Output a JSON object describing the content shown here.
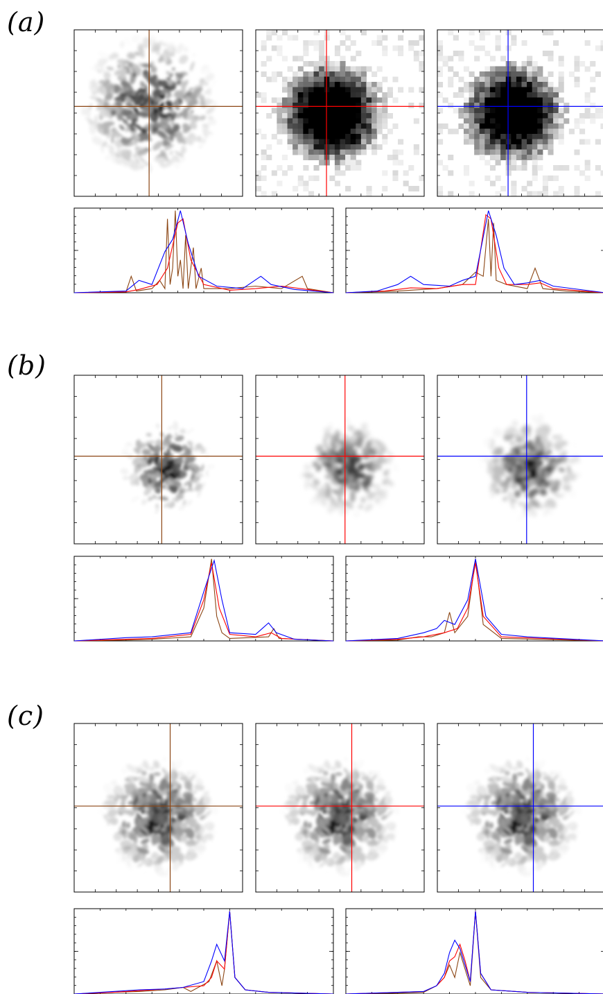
{
  "panels": [
    {
      "label": "(a)",
      "image_style": "smooth",
      "lines": {
        "left": "#8B4513",
        "middle": "#ff0000",
        "right": "#0000ff"
      }
    },
    {
      "label": "(b)",
      "image_style": "smooth",
      "lines": {
        "left": "#8B4513",
        "middle": "#ff0000",
        "right": "#0000ff"
      }
    },
    {
      "label": "(c)",
      "image_style": "smooth",
      "lines": {
        "left": "#8B4513",
        "middle": "#ff0000",
        "right": "#0000ff"
      }
    }
  ],
  "colors": {
    "brown": "#8B4513",
    "red": "#ff0000",
    "blue": "#0000ff"
  },
  "profiles": {
    "a": {
      "left": {
        "brown": [
          [
            0,
            0
          ],
          [
            0.2,
            0.01
          ],
          [
            0.22,
            0.2
          ],
          [
            0.24,
            0.02
          ],
          [
            0.3,
            0.05
          ],
          [
            0.33,
            0.15
          ],
          [
            0.35,
            0.05
          ],
          [
            0.36,
            0.9
          ],
          [
            0.37,
            0.1
          ],
          [
            0.38,
            0.3
          ],
          [
            0.39,
            1.0
          ],
          [
            0.4,
            0.2
          ],
          [
            0.41,
            0.4
          ],
          [
            0.42,
            0.05
          ],
          [
            0.43,
            0.7
          ],
          [
            0.44,
            0.05
          ],
          [
            0.46,
            0.55
          ],
          [
            0.47,
            0.05
          ],
          [
            0.49,
            0.3
          ],
          [
            0.5,
            0.05
          ],
          [
            0.6,
            0.05
          ],
          [
            0.7,
            0.08
          ],
          [
            0.8,
            0.05
          ],
          [
            0.88,
            0.2
          ],
          [
            0.9,
            0.05
          ],
          [
            1,
            0
          ]
        ],
        "red": [
          [
            0,
            0
          ],
          [
            0.2,
            0.01
          ],
          [
            0.25,
            0.04
          ],
          [
            0.32,
            0.1
          ],
          [
            0.36,
            0.3
          ],
          [
            0.4,
            0.85
          ],
          [
            0.42,
            0.9
          ],
          [
            0.45,
            0.4
          ],
          [
            0.5,
            0.1
          ],
          [
            0.6,
            0.03
          ],
          [
            0.7,
            0.05
          ],
          [
            0.8,
            0.08
          ],
          [
            0.9,
            0.04
          ],
          [
            1,
            0
          ]
        ],
        "blue": [
          [
            0,
            0
          ],
          [
            0.2,
            0.02
          ],
          [
            0.25,
            0.15
          ],
          [
            0.3,
            0.1
          ],
          [
            0.35,
            0.5
          ],
          [
            0.38,
            0.65
          ],
          [
            0.41,
            1.0
          ],
          [
            0.44,
            0.6
          ],
          [
            0.48,
            0.2
          ],
          [
            0.55,
            0.08
          ],
          [
            0.65,
            0.05
          ],
          [
            0.72,
            0.2
          ],
          [
            0.76,
            0.1
          ],
          [
            0.85,
            0.04
          ],
          [
            1,
            0
          ]
        ]
      },
      "right": {
        "brown": [
          [
            0,
            0
          ],
          [
            0.2,
            0.02
          ],
          [
            0.35,
            0.05
          ],
          [
            0.45,
            0.1
          ],
          [
            0.5,
            0.25
          ],
          [
            0.53,
            0.2
          ],
          [
            0.55,
            0.9
          ],
          [
            0.56,
            0.2
          ],
          [
            0.57,
            0.85
          ],
          [
            0.58,
            0.15
          ],
          [
            0.62,
            0.1
          ],
          [
            0.7,
            0.05
          ],
          [
            0.73,
            0.3
          ],
          [
            0.76,
            0.05
          ],
          [
            0.85,
            0.02
          ],
          [
            1,
            0
          ]
        ],
        "red": [
          [
            0,
            0
          ],
          [
            0.15,
            0.02
          ],
          [
            0.25,
            0.06
          ],
          [
            0.35,
            0.05
          ],
          [
            0.45,
            0.1
          ],
          [
            0.5,
            0.1
          ],
          [
            0.54,
            0.95
          ],
          [
            0.56,
            0.9
          ],
          [
            0.59,
            0.3
          ],
          [
            0.62,
            0.1
          ],
          [
            0.7,
            0.1
          ],
          [
            0.75,
            0.12
          ],
          [
            0.8,
            0.05
          ],
          [
            1,
            0
          ]
        ],
        "blue": [
          [
            0,
            0
          ],
          [
            0.12,
            0.02
          ],
          [
            0.2,
            0.1
          ],
          [
            0.25,
            0.2
          ],
          [
            0.3,
            0.1
          ],
          [
            0.4,
            0.08
          ],
          [
            0.45,
            0.15
          ],
          [
            0.5,
            0.2
          ],
          [
            0.55,
            1.0
          ],
          [
            0.58,
            0.7
          ],
          [
            0.61,
            0.3
          ],
          [
            0.65,
            0.1
          ],
          [
            0.7,
            0.12
          ],
          [
            0.75,
            0.15
          ],
          [
            0.8,
            0.08
          ],
          [
            1,
            0
          ]
        ]
      }
    },
    "b": {
      "left": {
        "brown": [
          [
            0,
            0
          ],
          [
            0.2,
            0.01
          ],
          [
            0.3,
            0.02
          ],
          [
            0.45,
            0.05
          ],
          [
            0.5,
            0.4
          ],
          [
            0.53,
            1.0
          ],
          [
            0.55,
            0.3
          ],
          [
            0.57,
            0.1
          ],
          [
            0.6,
            0.03
          ],
          [
            0.75,
            0.05
          ],
          [
            0.77,
            0.15
          ],
          [
            0.79,
            0.03
          ],
          [
            1,
            0
          ]
        ],
        "red": [
          [
            0,
            0
          ],
          [
            0.2,
            0.02
          ],
          [
            0.3,
            0.03
          ],
          [
            0.45,
            0.08
          ],
          [
            0.5,
            0.5
          ],
          [
            0.53,
            0.95
          ],
          [
            0.56,
            0.4
          ],
          [
            0.6,
            0.08
          ],
          [
            0.7,
            0.05
          ],
          [
            0.76,
            0.1
          ],
          [
            0.8,
            0.03
          ],
          [
            1,
            0
          ]
        ],
        "blue": [
          [
            0,
            0
          ],
          [
            0.2,
            0.04
          ],
          [
            0.3,
            0.05
          ],
          [
            0.45,
            0.1
          ],
          [
            0.5,
            0.6
          ],
          [
            0.54,
            0.98
          ],
          [
            0.57,
            0.5
          ],
          [
            0.6,
            0.1
          ],
          [
            0.7,
            0.08
          ],
          [
            0.75,
            0.22
          ],
          [
            0.78,
            0.1
          ],
          [
            0.85,
            0.02
          ],
          [
            1,
            0
          ]
        ]
      },
      "right": {
        "brown": [
          [
            0,
            0
          ],
          [
            0.2,
            0.01
          ],
          [
            0.28,
            0.05
          ],
          [
            0.33,
            0.05
          ],
          [
            0.38,
            0.1
          ],
          [
            0.4,
            0.35
          ],
          [
            0.42,
            0.1
          ],
          [
            0.47,
            0.3
          ],
          [
            0.5,
            1.0
          ],
          [
            0.53,
            0.2
          ],
          [
            0.6,
            0.03
          ],
          [
            1,
            0
          ]
        ],
        "red": [
          [
            0,
            0
          ],
          [
            0.2,
            0.02
          ],
          [
            0.3,
            0.05
          ],
          [
            0.38,
            0.1
          ],
          [
            0.43,
            0.15
          ],
          [
            0.47,
            0.4
          ],
          [
            0.5,
            0.95
          ],
          [
            0.53,
            0.3
          ],
          [
            0.6,
            0.05
          ],
          [
            1,
            0
          ]
        ],
        "blue": [
          [
            0,
            0
          ],
          [
            0.2,
            0.03
          ],
          [
            0.3,
            0.1
          ],
          [
            0.35,
            0.15
          ],
          [
            0.38,
            0.25
          ],
          [
            0.42,
            0.2
          ],
          [
            0.47,
            0.5
          ],
          [
            0.5,
            1.0
          ],
          [
            0.54,
            0.3
          ],
          [
            0.6,
            0.08
          ],
          [
            0.7,
            0.05
          ],
          [
            1,
            0
          ]
        ]
      }
    },
    "c": {
      "left": {
        "brown": [
          [
            0,
            0
          ],
          [
            0.15,
            0.02
          ],
          [
            0.25,
            0.03
          ],
          [
            0.35,
            0.05
          ],
          [
            0.42,
            0.08
          ],
          [
            0.45,
            0.03
          ],
          [
            0.52,
            0.15
          ],
          [
            0.55,
            0.4
          ],
          [
            0.57,
            0.1
          ],
          [
            0.58,
            0.3
          ],
          [
            0.6,
            1.0
          ],
          [
            0.62,
            0.2
          ],
          [
            0.66,
            0.05
          ],
          [
            0.75,
            0.02
          ],
          [
            1,
            0
          ]
        ],
        "red": [
          [
            0,
            0
          ],
          [
            0.15,
            0.02
          ],
          [
            0.25,
            0.04
          ],
          [
            0.35,
            0.06
          ],
          [
            0.42,
            0.08
          ],
          [
            0.5,
            0.1
          ],
          [
            0.53,
            0.2
          ],
          [
            0.55,
            0.4
          ],
          [
            0.58,
            0.3
          ],
          [
            0.6,
            1.0
          ],
          [
            0.62,
            0.2
          ],
          [
            0.66,
            0.05
          ],
          [
            0.75,
            0.02
          ],
          [
            1,
            0
          ]
        ],
        "blue": [
          [
            0,
            0
          ],
          [
            0.15,
            0.03
          ],
          [
            0.25,
            0.05
          ],
          [
            0.35,
            0.06
          ],
          [
            0.42,
            0.08
          ],
          [
            0.5,
            0.15
          ],
          [
            0.53,
            0.4
          ],
          [
            0.55,
            0.6
          ],
          [
            0.58,
            0.4
          ],
          [
            0.6,
            1.0
          ],
          [
            0.62,
            0.2
          ],
          [
            0.66,
            0.05
          ],
          [
            0.75,
            0.02
          ],
          [
            1,
            0
          ]
        ]
      },
      "right": {
        "brown": [
          [
            0,
            0
          ],
          [
            0.2,
            0.01
          ],
          [
            0.3,
            0.02
          ],
          [
            0.35,
            0.1
          ],
          [
            0.38,
            0.2
          ],
          [
            0.4,
            0.35
          ],
          [
            0.42,
            0.2
          ],
          [
            0.44,
            0.5
          ],
          [
            0.46,
            0.3
          ],
          [
            0.48,
            0.1
          ],
          [
            0.5,
            1.0
          ],
          [
            0.52,
            0.2
          ],
          [
            0.56,
            0.05
          ],
          [
            0.7,
            0.02
          ],
          [
            1,
            0
          ]
        ],
        "red": [
          [
            0,
            0
          ],
          [
            0.2,
            0.02
          ],
          [
            0.3,
            0.03
          ],
          [
            0.35,
            0.1
          ],
          [
            0.38,
            0.2
          ],
          [
            0.4,
            0.4
          ],
          [
            0.42,
            0.45
          ],
          [
            0.44,
            0.6
          ],
          [
            0.46,
            0.4
          ],
          [
            0.48,
            0.15
          ],
          [
            0.5,
            1.0
          ],
          [
            0.52,
            0.25
          ],
          [
            0.56,
            0.05
          ],
          [
            0.7,
            0.02
          ],
          [
            1,
            0
          ]
        ],
        "blue": [
          [
            0,
            0
          ],
          [
            0.2,
            0.02
          ],
          [
            0.3,
            0.03
          ],
          [
            0.35,
            0.1
          ],
          [
            0.38,
            0.25
          ],
          [
            0.4,
            0.5
          ],
          [
            0.42,
            0.65
          ],
          [
            0.44,
            0.55
          ],
          [
            0.46,
            0.35
          ],
          [
            0.48,
            0.15
          ],
          [
            0.5,
            1.0
          ],
          [
            0.52,
            0.25
          ],
          [
            0.56,
            0.05
          ],
          [
            0.7,
            0.02
          ],
          [
            1,
            0
          ]
        ]
      }
    }
  }
}
